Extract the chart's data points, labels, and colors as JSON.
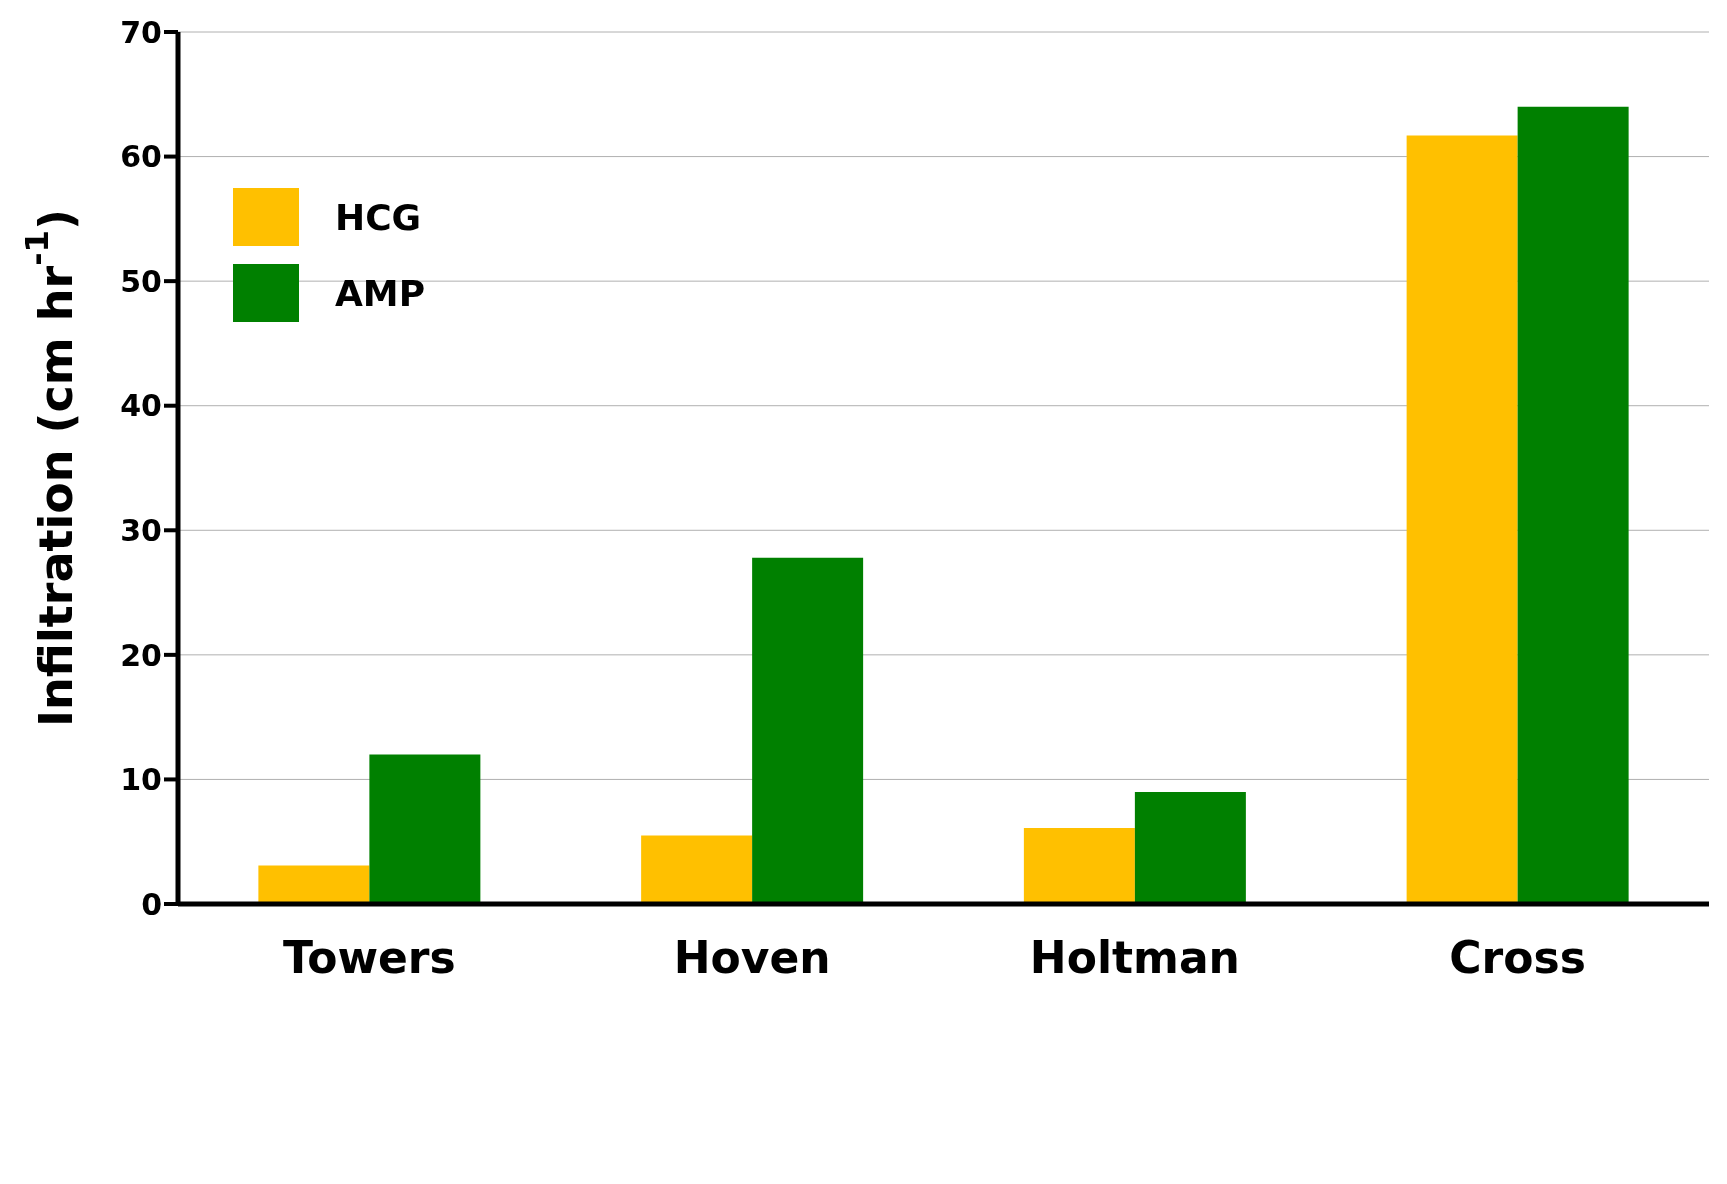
{
  "chart_data": {
    "type": "bar",
    "ylabel": "Infiltration (cm hr$^{-1}$)",
    "categories": [
      "Towers",
      "Hoven",
      "Holtman",
      "Cross"
    ],
    "series": [
      {
        "name": "HCG",
        "color": "#ffc000",
        "values": [
          3.1,
          5.5,
          6.1,
          61.7
        ]
      },
      {
        "name": "AMP",
        "color": "#008000",
        "values": [
          12,
          27.8,
          9,
          64
        ]
      }
    ],
    "ylim": [
      0,
      70
    ],
    "yticks": [
      0,
      10,
      20,
      30,
      40,
      50,
      60,
      70
    ],
    "grid": "y",
    "legend": "top left"
  }
}
